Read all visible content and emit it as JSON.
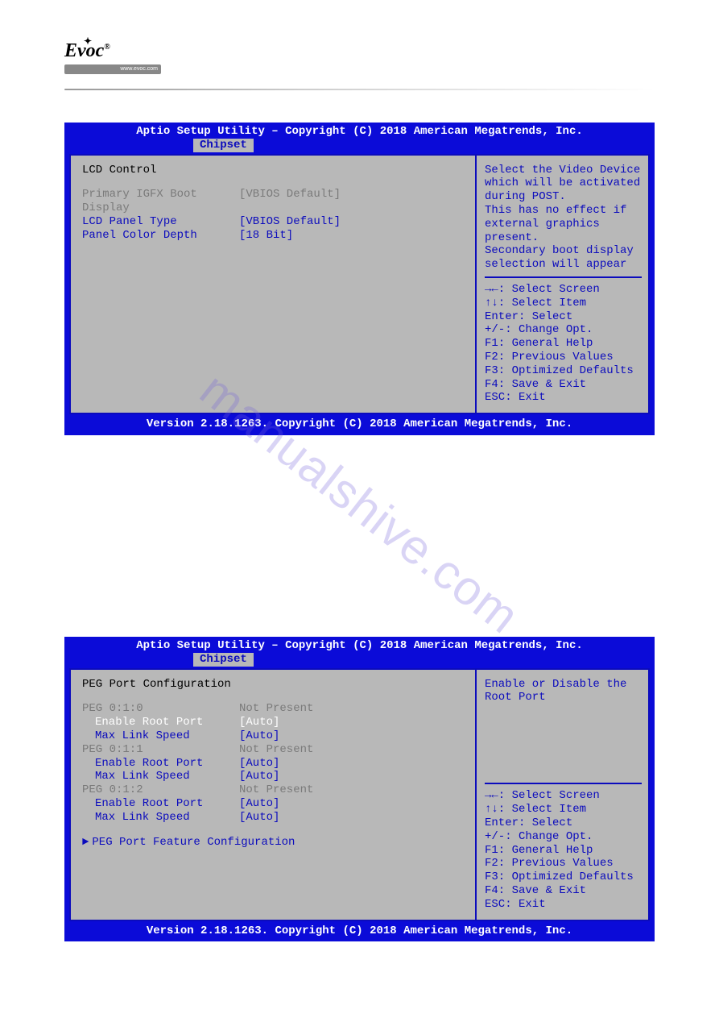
{
  "logo": {
    "text": "Evoc",
    "url": "www.evoc.com",
    "reg": "®"
  },
  "watermark": "manualshive.com",
  "bios_common": {
    "title": "Aptio Setup Utility – Copyright (C) 2018 American Megatrends, Inc.",
    "tab": "Chipset",
    "footer": "Version 2.18.1263. Copyright (C) 2018 American Megatrends, Inc.",
    "nav": {
      "l1": "→←: Select Screen",
      "l2": "↑↓: Select Item",
      "l3": "Enter: Select",
      "l4": "+/-: Change Opt.",
      "l5": "F1: General Help",
      "l6": "F2: Previous Values",
      "l7": "F3: Optimized Defaults",
      "l8": "F4: Save & Exit",
      "l9": "ESC: Exit"
    }
  },
  "bios1": {
    "section_title": "LCD Control",
    "rows": [
      {
        "label": "Primary IGFX Boot",
        "value": "[VBIOS Default]",
        "color": "gray",
        "indent": false
      },
      {
        "label": "Display",
        "value": "",
        "color": "gray",
        "indent": false
      },
      {
        "label": "LCD Panel Type",
        "value": "[VBIOS Default]",
        "color": "blue",
        "indent": false
      },
      {
        "label": "Panel Color Depth",
        "value": "[18 Bit]",
        "color": "blue",
        "indent": false
      }
    ],
    "help": [
      "Select the Video Device",
      "which will be activated",
      "during POST.",
      "This has no effect if",
      "external graphics",
      "present.",
      "Secondary boot display",
      "selection will appear"
    ]
  },
  "bios2": {
    "section_title": "PEG Port Configuration",
    "rows": [
      {
        "label": "PEG 0:1:0",
        "value": "Not Present",
        "color": "gray",
        "indent": false
      },
      {
        "label": "Enable Root Port",
        "value": "[Auto]",
        "color": "white",
        "indent": true
      },
      {
        "label": "Max Link Speed",
        "value": "[Auto]",
        "color": "blue",
        "indent": true
      },
      {
        "label": "PEG 0:1:1",
        "value": "Not Present",
        "color": "gray",
        "indent": false
      },
      {
        "label": "Enable Root Port",
        "value": "[Auto]",
        "color": "blue",
        "indent": true
      },
      {
        "label": "Max Link Speed",
        "value": "[Auto]",
        "color": "blue",
        "indent": true
      },
      {
        "label": "PEG 0:1:2",
        "value": "Not Present",
        "color": "gray",
        "indent": false
      },
      {
        "label": "Enable Root Port",
        "value": "[Auto]",
        "color": "blue",
        "indent": true
      },
      {
        "label": "Max Link Speed",
        "value": "[Auto]",
        "color": "blue",
        "indent": true
      }
    ],
    "submenu": "PEG Port Feature Configuration",
    "help": [
      "Enable or Disable the",
      "Root Port"
    ]
  }
}
